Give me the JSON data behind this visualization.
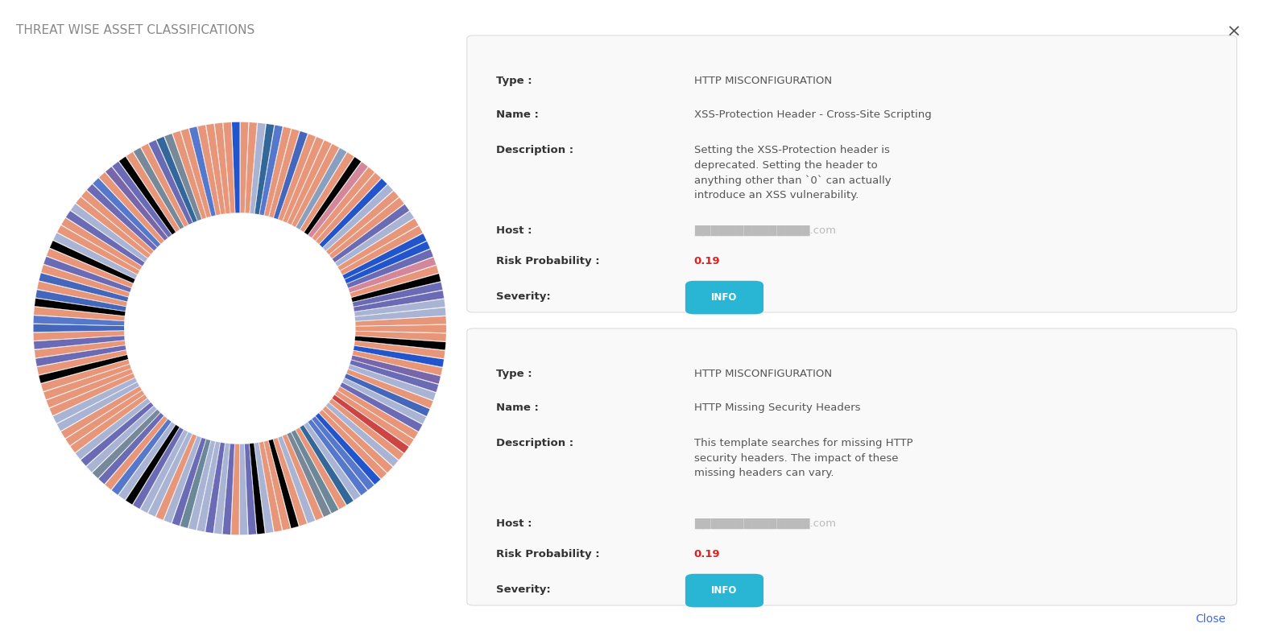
{
  "title": "THREAT WISE ASSET CLASSIFICATIONS",
  "title_color": "#888888",
  "title_fontsize": 11,
  "background_color": "#ffffff",
  "n_segments": 150,
  "base_colors": [
    "#E8967A",
    "#A9B4D4",
    "#6B6BB5",
    "#2255CC",
    "#000000",
    "#5577CC",
    "#778899",
    "#4466BB",
    "#CC4444",
    "#336699",
    "#8899BB",
    "#E8967A",
    "#7766AA",
    "#3B7FCC",
    "#6B8899",
    "#D4869A",
    "#556688",
    "#1A2A5A",
    "#88A0C0",
    "#F0A090"
  ],
  "weights": [
    0.35,
    0.2,
    0.15,
    0.08,
    0.05,
    0.05,
    0.03,
    0.03,
    0.02,
    0.02,
    0.01,
    0.01,
    0.01,
    0.01,
    0.01,
    0.01,
    0.01,
    0.01,
    0.01,
    0.01
  ],
  "card1": {
    "type_label": "Type :",
    "type_value": "HTTP MISCONFIGURATION",
    "name_label": "Name :",
    "name_value": "XSS-Protection Header - Cross-Site Scripting",
    "desc_label": "Description :",
    "desc_value": "Setting the XSS-Protection header is\ndeprecated. Setting the header to\nanything other than `0` can actually\nintroduce an XSS vulnerability.",
    "host_label": "Host :",
    "host_value": "██████████████.com",
    "risk_label": "Risk Probability :",
    "risk_value": "0.19",
    "sev_label": "Severity:",
    "sev_value": "INFO",
    "sev_color": "#29B6D5"
  },
  "card2": {
    "type_label": "Type :",
    "type_value": "HTTP MISCONFIGURATION",
    "name_label": "Name :",
    "name_value": "HTTP Missing Security Headers",
    "desc_label": "Description :",
    "desc_value": "This template searches for missing HTTP\nsecurity headers. The impact of these\nmissing headers can vary.",
    "host_label": "Host :",
    "host_value": "██████████████.com",
    "risk_label": "Risk Probability :",
    "risk_value": "0.19",
    "sev_label": "Severity:",
    "sev_value": "INFO",
    "sev_color": "#29B6D5"
  },
  "close_text": "Close",
  "close_color": "#4169E1",
  "x_button_text": "×",
  "x_button_color": "#555555"
}
